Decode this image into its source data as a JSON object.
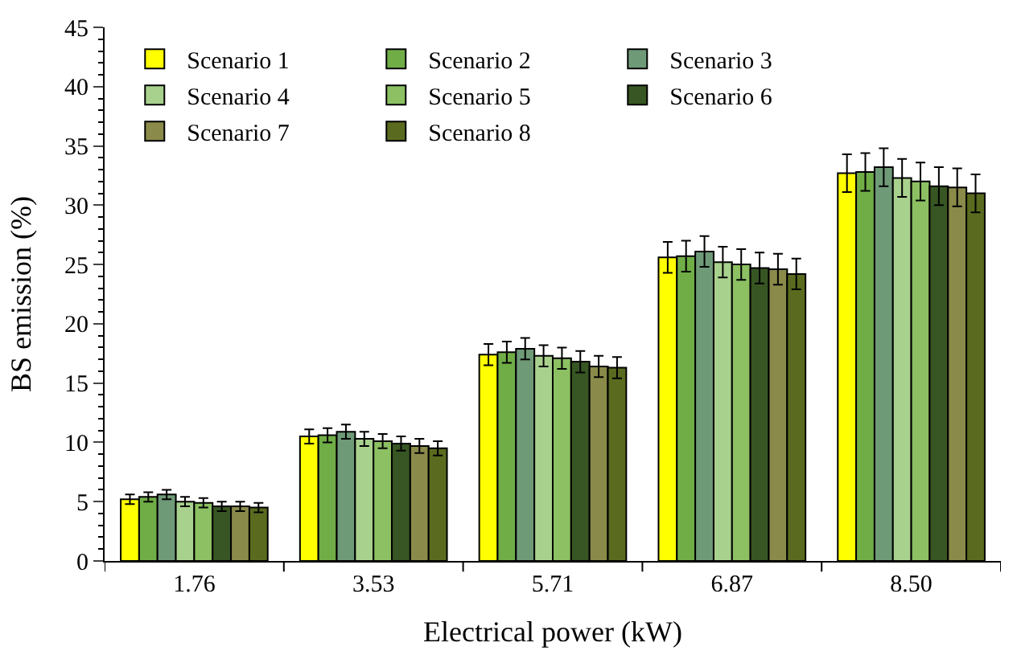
{
  "chart_data": {
    "type": "bar",
    "xlabel": "Electrical power (kW)",
    "ylabel": "BS emission (%)",
    "categories": [
      "1.76",
      "3.53",
      "5.71",
      "6.87",
      "8.50"
    ],
    "ylim": [
      0,
      45
    ],
    "yticks": [
      0,
      5,
      10,
      15,
      20,
      25,
      30,
      35,
      40,
      45
    ],
    "legend": "top",
    "series": [
      {
        "name": "Scenario 1",
        "color": "#ffff00",
        "values": [
          5.2,
          10.5,
          17.4,
          25.6,
          32.7
        ],
        "errors": [
          0.4,
          0.6,
          0.9,
          1.3,
          1.6
        ]
      },
      {
        "name": "Scenario 2",
        "color": "#70ad47",
        "values": [
          5.4,
          10.6,
          17.6,
          25.7,
          32.8
        ],
        "errors": [
          0.4,
          0.6,
          0.9,
          1.3,
          1.6
        ]
      },
      {
        "name": "Scenario 3",
        "color": "#6f9a78",
        "values": [
          5.6,
          10.9,
          17.9,
          26.1,
          33.2
        ],
        "errors": [
          0.4,
          0.6,
          0.9,
          1.3,
          1.6
        ]
      },
      {
        "name": "Scenario 4",
        "color": "#a9d18e",
        "values": [
          5.0,
          10.3,
          17.3,
          25.2,
          32.3
        ],
        "errors": [
          0.4,
          0.6,
          0.9,
          1.3,
          1.6
        ]
      },
      {
        "name": "Scenario 5",
        "color": "#8cc063",
        "values": [
          4.9,
          10.1,
          17.1,
          25.0,
          32.0
        ],
        "errors": [
          0.4,
          0.6,
          0.9,
          1.3,
          1.6
        ]
      },
      {
        "name": "Scenario 6",
        "color": "#375623",
        "values": [
          4.6,
          9.9,
          16.8,
          24.7,
          31.6
        ],
        "errors": [
          0.4,
          0.6,
          0.9,
          1.3,
          1.6
        ]
      },
      {
        "name": "Scenario 7",
        "color": "#8a8a4a",
        "values": [
          4.6,
          9.7,
          16.4,
          24.6,
          31.5
        ],
        "errors": [
          0.4,
          0.6,
          0.9,
          1.3,
          1.6
        ]
      },
      {
        "name": "Scenario 8",
        "color": "#5a6b1f",
        "values": [
          4.5,
          9.5,
          16.3,
          24.2,
          31.0
        ],
        "errors": [
          0.4,
          0.6,
          0.9,
          1.3,
          1.6
        ]
      }
    ]
  }
}
